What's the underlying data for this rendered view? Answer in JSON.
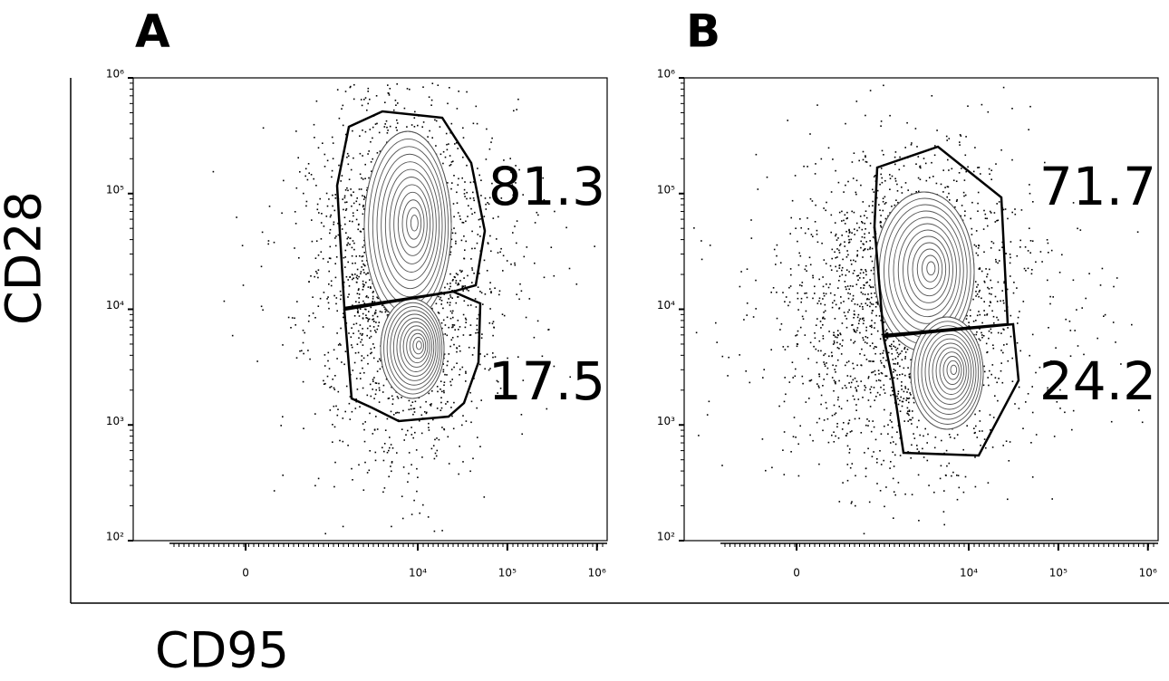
{
  "y_label": "CD28",
  "x_label": "CD95",
  "chart_data": [
    {
      "type": "flow-contour",
      "panel_label": "A",
      "xscale": "biexponential",
      "yscale": "log",
      "xlim": [
        -2150,
        1300000
      ],
      "ylim": [
        100,
        1000000
      ],
      "xticks": [
        0,
        {
          "value": 10000,
          "label": "10⁴"
        },
        {
          "value": 100000,
          "label": "10⁵"
        },
        {
          "value": 1000000,
          "label": "10⁶"
        }
      ],
      "yticks": [
        {
          "value": 100,
          "label": "10²"
        },
        {
          "value": 1000,
          "label": "10³"
        },
        {
          "value": 10000,
          "label": "10⁴"
        },
        {
          "value": 100000,
          "label": "10⁵"
        },
        {
          "value": 1000000,
          "label": "10⁶"
        }
      ],
      "gates": [
        81.3,
        17.5
      ]
    },
    {
      "type": "flow-contour",
      "panel_label": "B",
      "xscale": "biexponential",
      "yscale": "log",
      "xlim": [
        -2150,
        1300000
      ],
      "ylim": [
        100,
        1000000
      ],
      "xticks": [
        0,
        {
          "value": 10000,
          "label": "10⁴"
        },
        {
          "value": 100000,
          "label": "10⁵"
        },
        {
          "value": 1000000,
          "label": "10⁶"
        }
      ],
      "yticks": [
        {
          "value": 100,
          "label": "10²"
        },
        {
          "value": 1000,
          "label": "10³"
        },
        {
          "value": 10000,
          "label": "10⁴"
        },
        {
          "value": 100000,
          "label": "10⁵"
        },
        {
          "value": 1000000,
          "label": "10⁶"
        }
      ],
      "gates": [
        71.7,
        24.2
      ]
    }
  ]
}
